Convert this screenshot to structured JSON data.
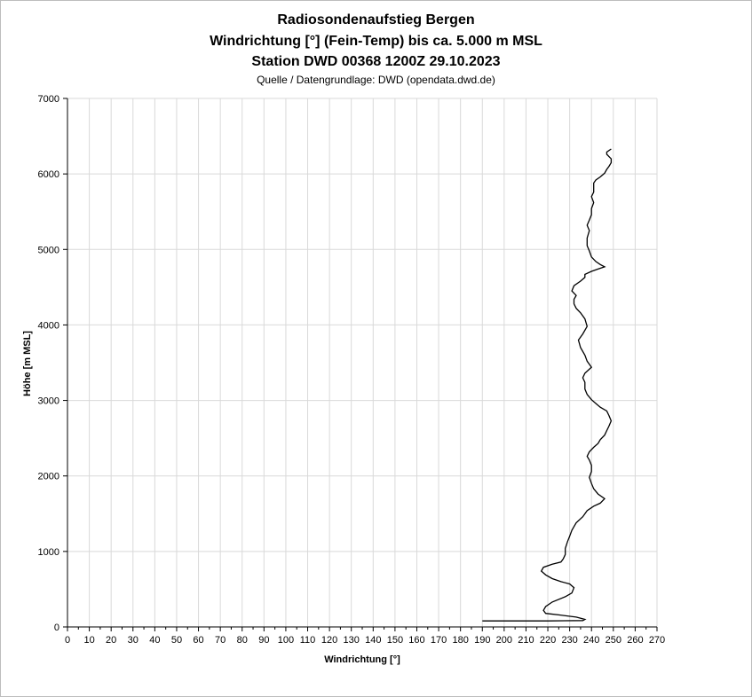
{
  "chart_data": {
    "type": "line",
    "title": "Radiosondenaufstieg Bergen",
    "subtitle_1": "Windrichtung [°] (Fein-Temp) bis ca. 5.000 m MSL",
    "subtitle_2": "Station DWD 00368 1200Z 29.10.2023",
    "source": "Quelle / Datengrundlage: DWD (opendata.dwd.de)",
    "xlabel": "Windrichtung [°]",
    "ylabel": "Höhe [m MSL]",
    "xlim": [
      0,
      270
    ],
    "ylim": [
      0,
      7000
    ],
    "xticks": [
      "0",
      "10",
      "20",
      "30",
      "40",
      "50",
      "60",
      "70",
      "80",
      "90",
      "100",
      "110",
      "120",
      "130",
      "140",
      "150",
      "160",
      "170",
      "180",
      "190",
      "200",
      "210",
      "220",
      "230",
      "240",
      "250",
      "260",
      "270"
    ],
    "yticks": [
      "0",
      "1000",
      "2000",
      "3000",
      "4000",
      "5000",
      "6000",
      "7000"
    ],
    "grid": true,
    "legend": "none",
    "line_color": "#000000",
    "grid_color": "#d9d9d9",
    "series": [
      {
        "x": [
          190,
          220,
          236,
          237,
          233,
          225,
          219,
          218,
          219,
          222,
          228,
          231,
          232,
          230,
          226,
          222,
          219,
          217,
          218,
          222,
          226,
          227,
          228,
          228,
          229,
          230,
          231,
          232,
          233,
          236,
          238,
          241,
          244,
          246,
          243,
          241,
          240,
          239,
          240,
          240,
          239,
          238,
          239,
          241,
          243,
          244,
          246,
          247,
          248,
          249,
          248,
          247,
          244,
          242,
          240,
          238,
          237,
          237,
          236,
          237,
          240,
          238,
          237,
          235,
          234,
          236,
          238,
          237,
          235,
          233,
          232,
          232,
          233,
          231,
          232,
          235,
          237,
          237,
          240,
          243,
          246,
          244,
          242,
          240,
          239,
          238,
          238,
          239,
          238,
          239,
          240,
          240,
          241,
          240,
          241,
          241,
          241,
          242,
          244,
          246,
          247,
          248,
          249,
          249,
          248,
          247,
          247,
          249
        ],
        "y": [
          80,
          80,
          85,
          100,
          130,
          160,
          180,
          220,
          270,
          330,
          400,
          450,
          520,
          570,
          600,
          640,
          690,
          740,
          790,
          830,
          860,
          900,
          960,
          1040,
          1130,
          1200,
          1280,
          1330,
          1380,
          1460,
          1540,
          1600,
          1640,
          1700,
          1760,
          1830,
          1900,
          1980,
          2060,
          2140,
          2210,
          2260,
          2320,
          2380,
          2430,
          2480,
          2540,
          2600,
          2660,
          2730,
          2800,
          2860,
          2910,
          2960,
          3010,
          3080,
          3150,
          3240,
          3300,
          3360,
          3440,
          3520,
          3600,
          3700,
          3800,
          3880,
          3980,
          4080,
          4160,
          4220,
          4280,
          4340,
          4390,
          4450,
          4520,
          4580,
          4630,
          4670,
          4710,
          4740,
          4770,
          4800,
          4840,
          4900,
          4980,
          5050,
          5150,
          5250,
          5320,
          5390,
          5460,
          5540,
          5620,
          5700,
          5760,
          5820,
          5880,
          5920,
          5960,
          6010,
          6060,
          6100,
          6150,
          6200,
          6230,
          6260,
          6290,
          6330
        ]
      }
    ]
  }
}
